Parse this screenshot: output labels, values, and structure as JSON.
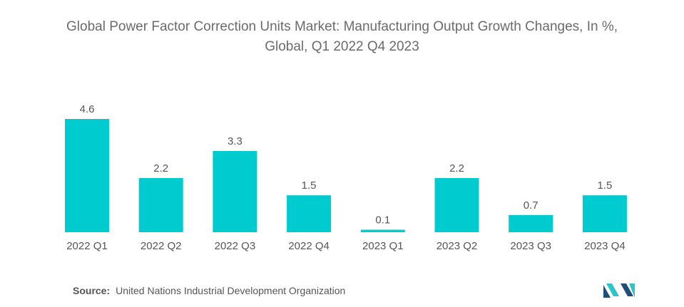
{
  "title": {
    "line1": "Global Power Factor Correction Units Market: Manufacturing Output Growth Changes, In %,",
    "line2": "Global, Q1 2022 Q4 2023"
  },
  "source": {
    "label": "Source:",
    "text": "United Nations Industrial Development Organization"
  },
  "colors": {
    "bar": "#00cccf",
    "text": "#555555",
    "logo_dark": "#1f4e79",
    "logo_light": "#2ec4c9"
  },
  "logo": {
    "icon": "mordor-intelligence-logo-icon"
  },
  "chart_data": {
    "type": "bar",
    "title": "Global Power Factor Correction Units Market: Manufacturing Output Growth Changes, In %, Global, Q1 2022 Q4 2023",
    "categories": [
      "2022 Q1",
      "2022 Q2",
      "2022 Q3",
      "2022 Q4",
      "2023 Q1",
      "2023 Q2",
      "2023 Q3",
      "2023 Q4"
    ],
    "values": [
      4.6,
      2.2,
      3.3,
      1.5,
      0.1,
      2.2,
      0.7,
      1.5
    ],
    "value_labels": [
      "4.6",
      "2.2",
      "3.3",
      "1.5",
      "0.1",
      "2.2",
      "0.7",
      "1.5"
    ],
    "xlabel": "",
    "ylabel": "",
    "ylim": [
      0,
      4.6
    ],
    "grid": false,
    "legend": "none"
  }
}
